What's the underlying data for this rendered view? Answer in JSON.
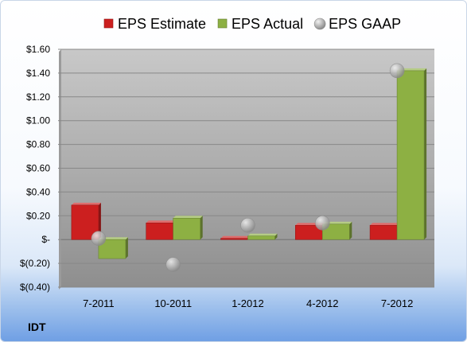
{
  "ticker": "IDT",
  "chart_data": {
    "type": "bar",
    "categories": [
      "7-2011",
      "10-2011",
      "1-2012",
      "4-2012",
      "7-2012"
    ],
    "series": [
      {
        "name": "EPS Estimate",
        "kind": "bar",
        "color": "#cc1f1f",
        "values": [
          0.29,
          0.14,
          0.01,
          0.12,
          0.12
        ]
      },
      {
        "name": "EPS Actual",
        "kind": "bar",
        "color": "#8db043",
        "values": [
          -0.16,
          0.18,
          0.03,
          0.13,
          1.42
        ]
      },
      {
        "name": "EPS GAAP",
        "kind": "marker",
        "color": "#a8a8a8",
        "values": [
          0.01,
          -0.21,
          0.12,
          0.14,
          1.42
        ]
      }
    ],
    "yticks": [
      "$1.60",
      "$1.40",
      "$1.20",
      "$1.00",
      "$0.80",
      "$0.60",
      "$0.40",
      "$0.20",
      "$-",
      "$(0.20)",
      "$(0.40)"
    ],
    "ylim": [
      -0.4,
      1.6
    ],
    "ystep": 0.2,
    "grid": true,
    "legend_position": "top"
  }
}
